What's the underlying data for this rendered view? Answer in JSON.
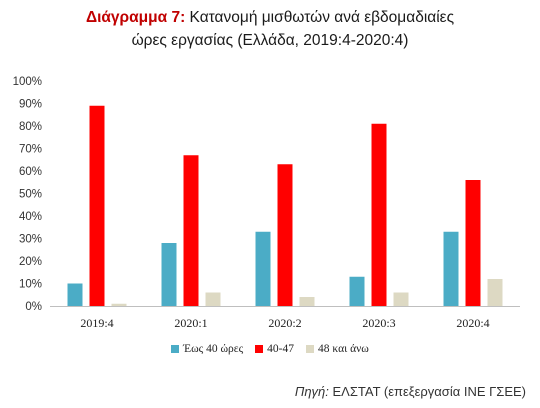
{
  "title": {
    "lead": "Διάγραμμα 7:",
    "line1": "Κατανομή μισθωτών ανά εβδομαδιαίες",
    "line2": "ώρες εργασίας (Ελλάδα, 2019:4-2020:4)"
  },
  "source": {
    "label": "Πηγή:",
    "text": "ΕΛΣΤΑΤ (επεξεργασία ΙΝΕ ΓΣΕΕ)"
  },
  "chart_data": {
    "type": "bar",
    "categories": [
      "2019:4",
      "2020:1",
      "2020:2",
      "2020:3",
      "2020:4"
    ],
    "series": [
      {
        "name": "Έως 40 ώρες",
        "color": "#4bacc6",
        "values": [
          10,
          28,
          33,
          13,
          33
        ]
      },
      {
        "name": "40-47",
        "color": "#ff0000",
        "values": [
          89,
          67,
          63,
          81,
          56
        ]
      },
      {
        "name": "48 και άνω",
        "color": "#ddd9c3",
        "values": [
          1,
          6,
          4,
          6,
          12
        ]
      }
    ],
    "yticks": [
      "0%",
      "10%",
      "20%",
      "30%",
      "40%",
      "50%",
      "60%",
      "70%",
      "80%",
      "90%",
      "100%"
    ],
    "ylim": [
      0,
      100
    ],
    "grid": false,
    "legend": "bottom"
  }
}
